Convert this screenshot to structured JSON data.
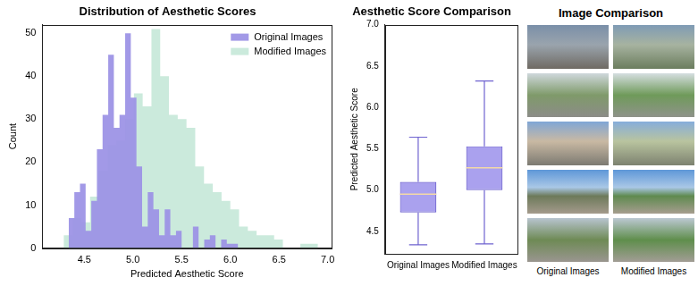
{
  "chart_data": [
    {
      "type": "histogram",
      "title": "Distribution of Aesthetic Scores",
      "x_label": "Predicted Aesthetic Score",
      "y_label": "Count",
      "series": [
        {
          "name": "Original Images",
          "color": "#9d93e6",
          "bins": [
            4.34,
            4.398,
            4.456,
            4.514,
            4.572,
            4.63,
            4.688,
            4.746,
            4.804,
            4.862,
            4.92,
            4.978,
            5.036,
            5.094,
            5.152,
            5.21,
            5.268,
            5.326,
            5.384,
            5.442,
            5.5,
            5.558,
            5.616,
            5.674,
            5.732,
            5.79,
            5.848,
            5.906,
            5.964,
            6.022,
            6.08
          ],
          "values": [
            3,
            7,
            13,
            15,
            4,
            11,
            23,
            31,
            45,
            28,
            31,
            50,
            35,
            19,
            5,
            13,
            9,
            3,
            9,
            3,
            4,
            0,
            0,
            5,
            0,
            2,
            3,
            0,
            2,
            1
          ]
        },
        {
          "name": "Modified Images",
          "color": "#a8dcc4",
          "bins": [
            4.2,
            4.29,
            4.38,
            4.47,
            4.56,
            4.65,
            4.74,
            4.83,
            4.92,
            5.01,
            5.1,
            5.19,
            5.28,
            5.37,
            5.46,
            5.55,
            5.64,
            5.73,
            5.82,
            5.91,
            6.0,
            6.09,
            6.18,
            6.27,
            6.36,
            6.45,
            6.54,
            6.63,
            6.72,
            6.81,
            6.9
          ],
          "values": [
            1,
            0,
            3,
            7,
            6,
            12,
            18,
            24,
            25,
            30,
            36,
            33,
            51,
            40,
            31,
            30,
            28,
            19,
            15,
            13,
            11,
            9,
            5,
            4,
            3,
            3,
            2,
            0,
            0,
            1
          ]
        }
      ],
      "xlim": [
        4.07,
        7.04
      ],
      "xticks": [
        4.5,
        {
          "value": 5,
          "label": "5.0"
        },
        5.5,
        {
          "value": 6,
          "label": "6.0"
        },
        6.5,
        {
          "value": 7,
          "label": "7.0"
        }
      ],
      "ylim": [
        0,
        52
      ],
      "yticks": [
        0,
        10,
        20,
        30,
        40,
        50
      ],
      "grid": false,
      "legend": "upper right"
    },
    {
      "type": "box",
      "title": "Aesthetic Score Comparison",
      "y_label": "Predicted Aesthetic Score",
      "categories": [
        "Original Images",
        "Modified Images"
      ],
      "boxes": [
        {
          "min": 4.34,
          "q1": 4.73,
          "median": 4.95,
          "q3": 5.1,
          "max": 5.64
        },
        {
          "min": 4.35,
          "q1": 5.0,
          "median": 5.27,
          "q3": 5.53,
          "max": 6.32
        }
      ],
      "color": "#aaa1ee",
      "ylim": [
        4.23,
        7.0
      ],
      "yticks": [
        4.5,
        {
          "value": 5,
          "label": "5.0"
        },
        5.5,
        {
          "value": 6,
          "label": "6.0"
        },
        6.5,
        {
          "value": 7,
          "label": "7.0"
        }
      ],
      "grid": false
    }
  ],
  "image_comparison": {
    "title": "Image Comparison",
    "columns": [
      "Original Images",
      "Modified Images"
    ]
  }
}
